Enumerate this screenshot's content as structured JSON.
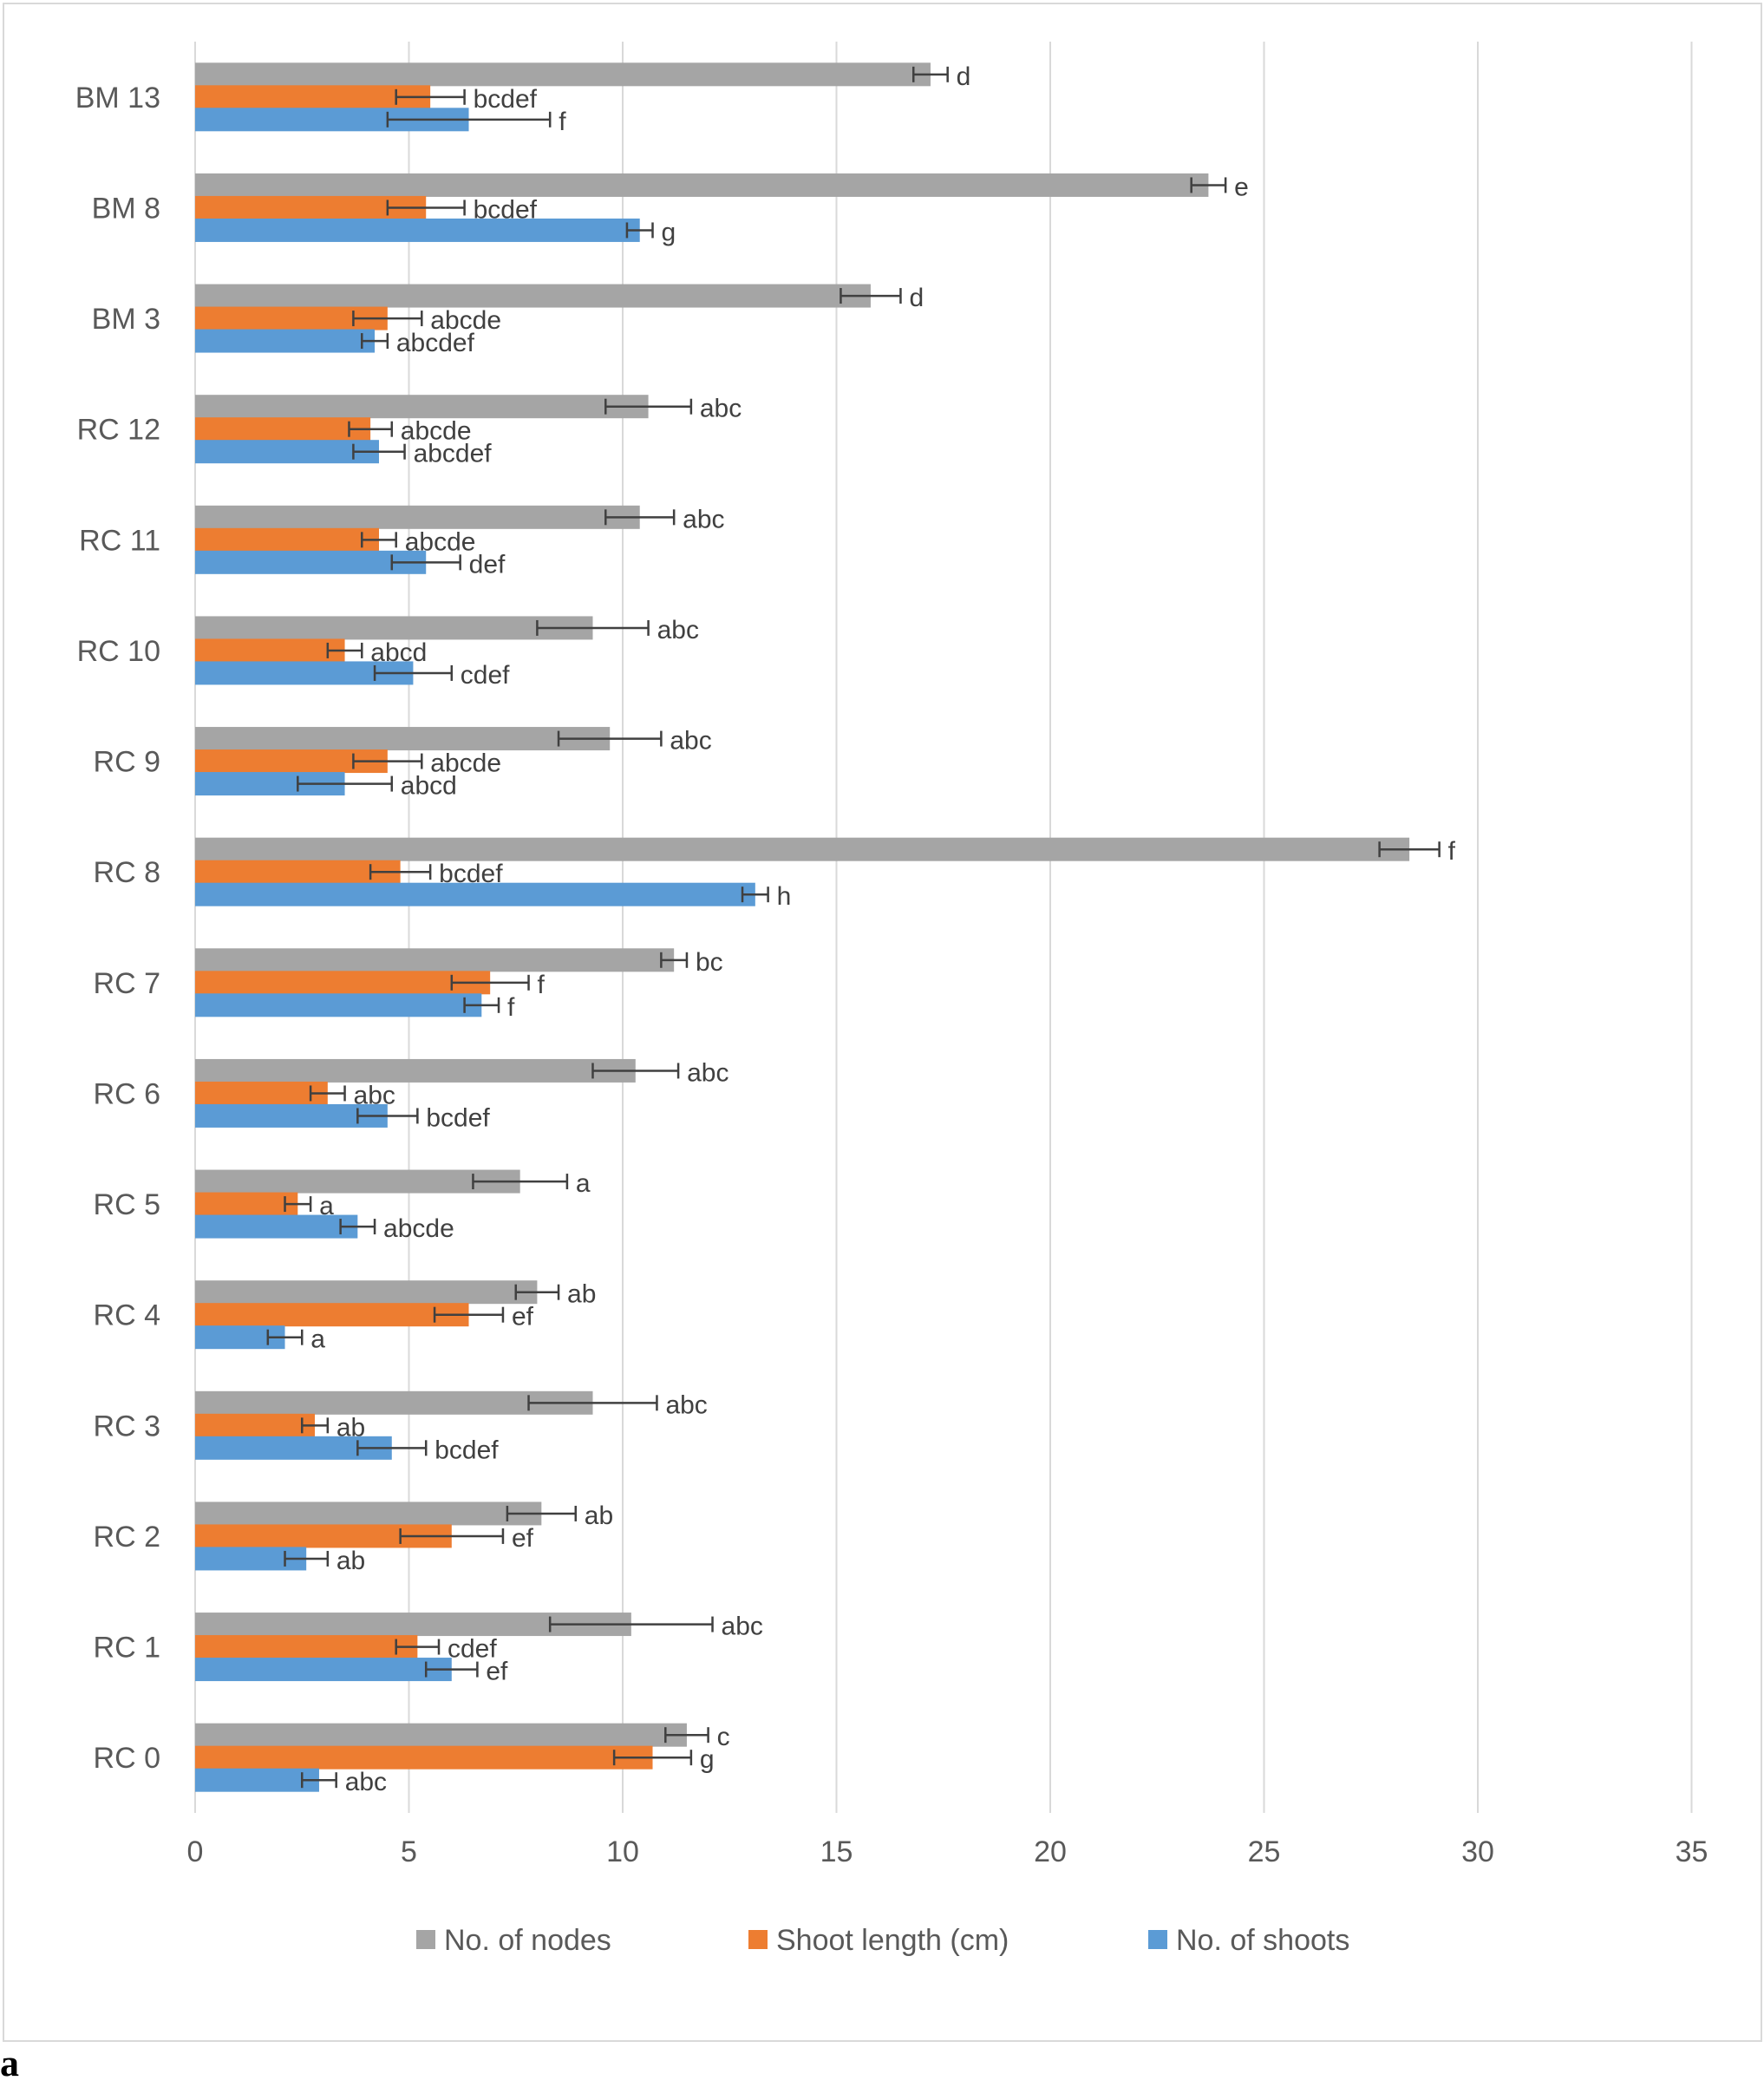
{
  "panel_label": "a",
  "chart_data": {
    "type": "bar",
    "orientation": "horizontal",
    "categories": [
      "RC 0",
      "RC 1",
      "RC 2",
      "RC 3",
      "RC 4",
      "RC 5",
      "RC 6",
      "RC 7",
      "RC 8",
      "RC 9",
      "RC 10",
      "RC 11",
      "RC 12",
      "BM 3",
      "BM 8",
      "BM 13"
    ],
    "series": [
      {
        "name": "No. of nodes",
        "color": "#a5a5a5",
        "values": [
          11.5,
          10.2,
          8.1,
          9.3,
          8.0,
          7.6,
          10.3,
          11.2,
          28.4,
          9.7,
          9.3,
          10.4,
          10.6,
          15.8,
          23.7,
          17.2
        ],
        "errors": [
          0.5,
          1.9,
          0.8,
          1.5,
          0.5,
          1.1,
          1.0,
          0.3,
          0.7,
          1.2,
          1.3,
          0.8,
          1.0,
          0.7,
          0.4,
          0.4
        ],
        "letters": [
          "c",
          "abc",
          "ab",
          "abc",
          "ab",
          "a",
          "abc",
          "bc",
          "f",
          "abc",
          "abc",
          "abc",
          "abc",
          "d",
          "e",
          "d"
        ]
      },
      {
        "name": "Shoot length (cm)",
        "color": "#ed7d31",
        "values": [
          10.7,
          5.2,
          6.0,
          2.8,
          6.4,
          2.4,
          3.1,
          6.9,
          4.8,
          4.5,
          3.5,
          4.3,
          4.1,
          4.5,
          5.4,
          5.5
        ],
        "errors": [
          0.9,
          0.5,
          1.2,
          0.3,
          0.8,
          0.3,
          0.4,
          0.9,
          0.7,
          0.8,
          0.4,
          0.4,
          0.5,
          0.8,
          0.9,
          0.8
        ],
        "letters": [
          "g",
          "cdef",
          "ef",
          "ab",
          "ef",
          "a",
          "abc",
          "f",
          "bcdef",
          "abcde",
          "abcd",
          "abcde",
          "abcde",
          "abcde",
          "bcdef",
          "bcdef"
        ]
      },
      {
        "name": "No. of shoots",
        "color": "#5b9bd5",
        "values": [
          2.9,
          6.0,
          2.6,
          4.6,
          2.1,
          3.8,
          4.5,
          6.7,
          13.1,
          3.5,
          5.1,
          5.4,
          4.3,
          4.2,
          10.4,
          6.4
        ],
        "errors": [
          0.4,
          0.6,
          0.5,
          0.8,
          0.4,
          0.4,
          0.7,
          0.4,
          0.3,
          1.1,
          0.9,
          0.8,
          0.6,
          0.3,
          0.3,
          1.9
        ],
        "letters": [
          "abc",
          "ef",
          "ab",
          "bcdef",
          "a",
          "abcde",
          "bcdef",
          "f",
          "h",
          "abcd",
          "cdef",
          "def",
          "abcdef",
          "abcdef",
          "g",
          "f"
        ]
      }
    ],
    "xlim": [
      0,
      35
    ],
    "xticks": [
      0,
      5,
      10,
      15,
      20,
      25,
      30,
      35
    ],
    "grid": true,
    "legend_position": "bottom",
    "legend_order": [
      "No. of nodes",
      "Shoot length (cm)",
      "No. of shoots"
    ],
    "title": "",
    "xlabel": "",
    "ylabel": ""
  }
}
